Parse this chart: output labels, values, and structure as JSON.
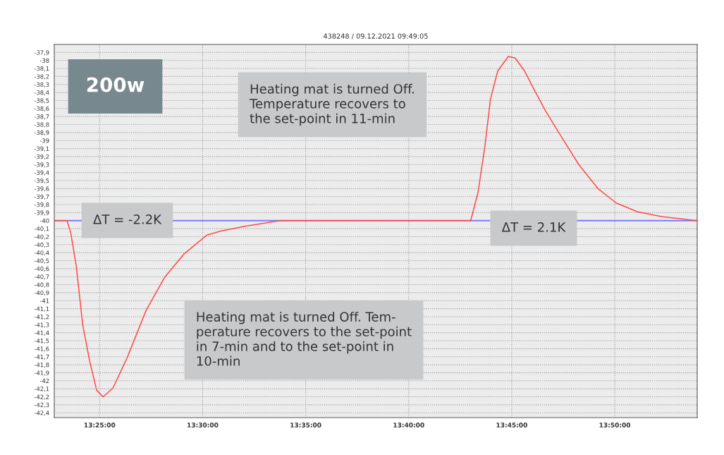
{
  "chart_data": {
    "type": "line",
    "title": "438248 / 09.12.2021 09:49:05",
    "annotations": [
      "200w",
      "Heating mat is turned Off.\nTemperature recovers to\nthe set-point in 11-min",
      "ΔT = -2.2K",
      "ΔT = 2.1K",
      "Heating mat is turned Off. Tem-\nperature recovers to the set-point\nin 7-min and to the set-point in\n10-min"
    ],
    "series": [
      {
        "color": "#ff4a4a",
        "x": [
          13.3802,
          13.3903,
          13.3933,
          13.3978,
          13.403,
          13.4087,
          13.4143,
          13.4195,
          13.4275,
          13.439,
          13.4543,
          13.4692,
          13.4847,
          13.5035,
          13.5148,
          13.5342,
          13.5628,
          13.6215,
          13.7168,
          13.7227,
          13.7283,
          13.7328,
          13.7387,
          13.7472,
          13.7528,
          13.7603,
          13.7683,
          13.7773,
          13.7888,
          13.8042,
          13.8197,
          13.8345,
          13.8517,
          13.871,
          13.8995
        ],
        "values": [
          -40.0,
          -40.0,
          -40.15,
          -40.57,
          -41.3,
          -41.76,
          -42.12,
          -42.2,
          -42.09,
          -41.71,
          -41.12,
          -40.71,
          -40.42,
          -40.18,
          -40.13,
          -40.07,
          -40.0,
          -40.0,
          -40.0,
          -39.65,
          -39.07,
          -38.48,
          -38.13,
          -37.95,
          -37.97,
          -38.13,
          -38.37,
          -38.63,
          -38.92,
          -39.3,
          -39.6,
          -39.78,
          -39.89,
          -39.95,
          -40.0
        ]
      }
    ],
    "ref_lines": [
      {
        "axis": "y",
        "value": -40,
        "color": "#7c7cff"
      }
    ],
    "xlim": [
      13.38,
      13.9
    ],
    "xticks": [
      {
        "value": 13.416667,
        "label": "13:25:00"
      },
      {
        "value": 13.5,
        "label": "13:30:00"
      },
      {
        "value": 13.583333,
        "label": "13:35:00"
      },
      {
        "value": 13.666667,
        "label": "13:40:00"
      },
      {
        "value": 13.75,
        "label": "13:45:00"
      },
      {
        "value": 13.833333,
        "label": "13:50:00"
      }
    ],
    "ylim": [
      -42.46,
      -37.8
    ],
    "yticks": [
      {
        "value": -37.9,
        "label": "-37,9"
      },
      -38,
      {
        "value": -38.1,
        "label": "-38,1"
      },
      {
        "value": -38.2,
        "label": "-38,2"
      },
      {
        "value": -38.3,
        "label": "-38,3"
      },
      {
        "value": -38.4,
        "label": "-38,4"
      },
      {
        "value": -38.5,
        "label": "-38,5"
      },
      {
        "value": -38.6,
        "label": "-38,6"
      },
      {
        "value": -38.7,
        "label": "-38,7"
      },
      {
        "value": -38.8,
        "label": "-38,8"
      },
      {
        "value": -38.9,
        "label": "-38,9"
      },
      -39,
      {
        "value": -39.1,
        "label": "-39,1"
      },
      {
        "value": -39.2,
        "label": "-39,2"
      },
      {
        "value": -39.3,
        "label": "-39,3"
      },
      {
        "value": -39.4,
        "label": "-39,4"
      },
      {
        "value": -39.5,
        "label": "-39,5"
      },
      {
        "value": -39.6,
        "label": "-39,6"
      },
      {
        "value": -39.7,
        "label": "-39,7"
      },
      {
        "value": -39.8,
        "label": "-39,8"
      },
      {
        "value": -39.9,
        "label": "-39,9"
      },
      -40,
      {
        "value": -40.1,
        "label": "-40,1"
      },
      {
        "value": -40.2,
        "label": "-40,2"
      },
      {
        "value": -40.3,
        "label": "-40,3"
      },
      {
        "value": -40.4,
        "label": "-40,4"
      },
      {
        "value": -40.5,
        "label": "-40,5"
      },
      {
        "value": -40.6,
        "label": "-40,6"
      },
      {
        "value": -40.7,
        "label": "-40,7"
      },
      {
        "value": -40.8,
        "label": "-40,8"
      },
      {
        "value": -40.9,
        "label": "-40,9"
      },
      -41,
      {
        "value": -41.1,
        "label": "-41,1"
      },
      {
        "value": -41.2,
        "label": "-41,2"
      },
      {
        "value": -41.3,
        "label": "-41,3"
      },
      {
        "value": -41.4,
        "label": "-41,4"
      },
      {
        "value": -41.5,
        "label": "-41,5"
      },
      {
        "value": -41.6,
        "label": "-41,6"
      },
      {
        "value": -41.7,
        "label": "-41,7"
      },
      {
        "value": -41.8,
        "label": "-41,8"
      },
      {
        "value": -41.9,
        "label": "-41,9"
      },
      -42,
      {
        "value": -42.1,
        "label": "-42,1"
      },
      {
        "value": -42.2,
        "label": "-42,2"
      },
      {
        "value": -42.3,
        "label": "-42,3"
      },
      {
        "value": -42.4,
        "label": "-42,4"
      }
    ],
    "grid": true,
    "line_style": "solid"
  }
}
